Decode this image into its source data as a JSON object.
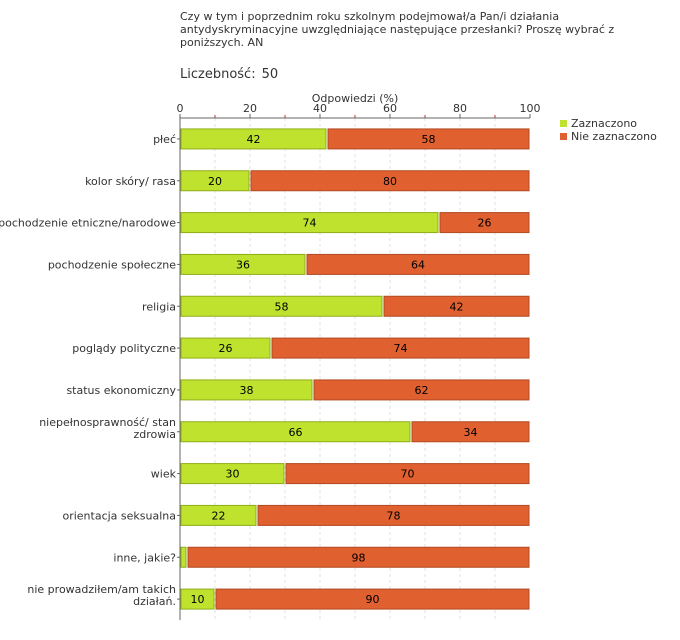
{
  "header": {
    "question": "Czy w tym i poprzednim roku szkolnym podejmował/a Pan/i działania antydyskryminacyjne uwzględniające następujące przesłanki? Proszę wybrać z poniższych. AN",
    "count_label": "Liczebność:",
    "count_value": "50"
  },
  "colors": {
    "checked": "#bfe22f",
    "unchecked": "#e06030"
  },
  "chart_data": {
    "type": "bar",
    "orientation": "horizontal",
    "stacked": true,
    "title": "Czy w tym i poprzednim roku szkolnym podejmował/a Pan/i działania antydyskryminacyjne uwzględniające następujące przesłanki? Proszę wybrać z poniższych. AN",
    "xlabel": "Odpowiedzi (%)",
    "ylabel": "",
    "xlim": [
      0,
      100
    ],
    "xticks": [
      0,
      20,
      40,
      60,
      80,
      100
    ],
    "legend_position": "top-right",
    "categories": [
      [
        "płeć"
      ],
      [
        "kolor skóry/ rasa"
      ],
      [
        "pochodzenie etniczne/narodowe"
      ],
      [
        "pochodzenie społeczne"
      ],
      [
        "religia"
      ],
      [
        "poglądy polityczne"
      ],
      [
        "status ekonomiczny"
      ],
      [
        "niepełnosprawność/ stan",
        "zdrowia"
      ],
      [
        "wiek"
      ],
      [
        "orientacja seksualna"
      ],
      [
        "inne, jakie?"
      ],
      [
        "nie prowadziłem/am takich",
        "działań."
      ]
    ],
    "series": [
      {
        "name": "Zaznaczono",
        "values": [
          42,
          20,
          74,
          36,
          58,
          26,
          38,
          66,
          30,
          22,
          2,
          10
        ],
        "labels": [
          "42",
          "20",
          "74",
          "36",
          "58",
          "26",
          "38",
          "66",
          "30",
          "22",
          "",
          "10"
        ]
      },
      {
        "name": "Nie zaznaczono",
        "values": [
          58,
          80,
          26,
          64,
          42,
          74,
          62,
          34,
          70,
          78,
          98,
          90
        ],
        "labels": [
          "58",
          "80",
          "26",
          "64",
          "42",
          "74",
          "62",
          "34",
          "70",
          "78",
          "98",
          "90"
        ]
      }
    ]
  }
}
